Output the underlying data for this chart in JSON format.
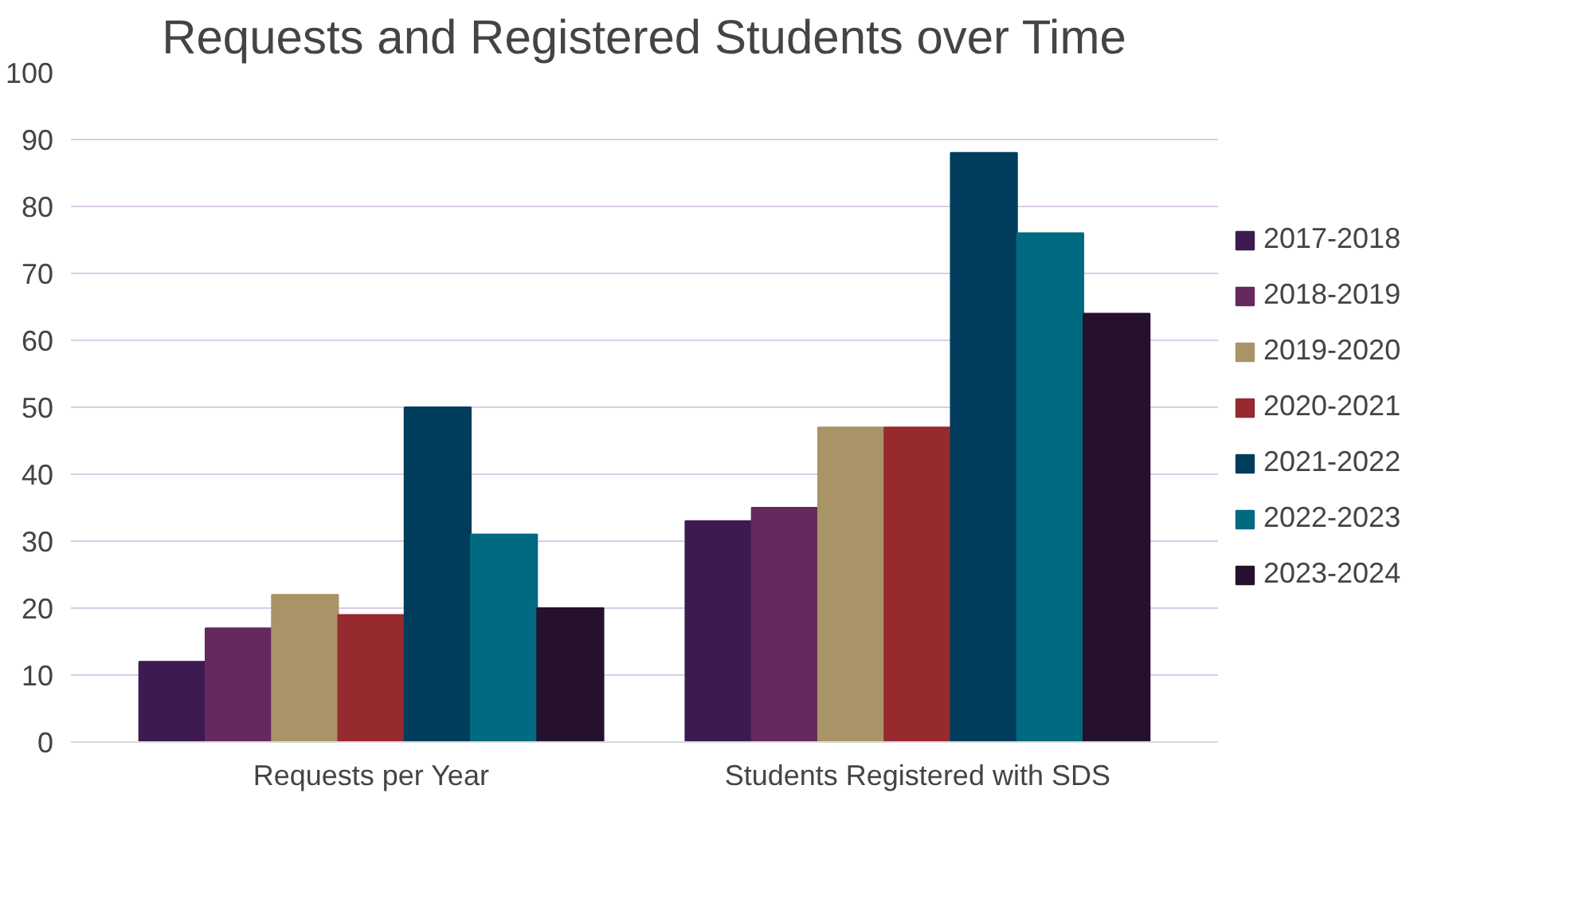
{
  "chart_data": {
    "type": "bar",
    "title": "Requests and Registered Students over Time",
    "categories": [
      "Requests per Year",
      "Students Registered with SDS"
    ],
    "series": [
      {
        "name": "2017-2018",
        "color": "#3d1a52",
        "values": [
          12,
          33
        ]
      },
      {
        "name": "2018-2019",
        "color": "#65295f",
        "values": [
          17,
          35
        ]
      },
      {
        "name": "2019-2020",
        "color": "#a89467",
        "values": [
          22,
          47
        ]
      },
      {
        "name": "2020-2021",
        "color": "#962a2f",
        "values": [
          19,
          47
        ]
      },
      {
        "name": "2021-2022",
        "color": "#003d5c",
        "values": [
          50,
          88
        ]
      },
      {
        "name": "2022-2023",
        "color": "#006a80",
        "values": [
          31,
          76
        ]
      },
      {
        "name": "2023-2024",
        "color": "#25112e",
        "values": [
          20,
          64
        ]
      }
    ],
    "ylim": [
      0,
      100
    ],
    "yticks": [
      0,
      10,
      20,
      30,
      40,
      50,
      60,
      70,
      80,
      90,
      100
    ],
    "grid": "y",
    "legend": "right"
  }
}
